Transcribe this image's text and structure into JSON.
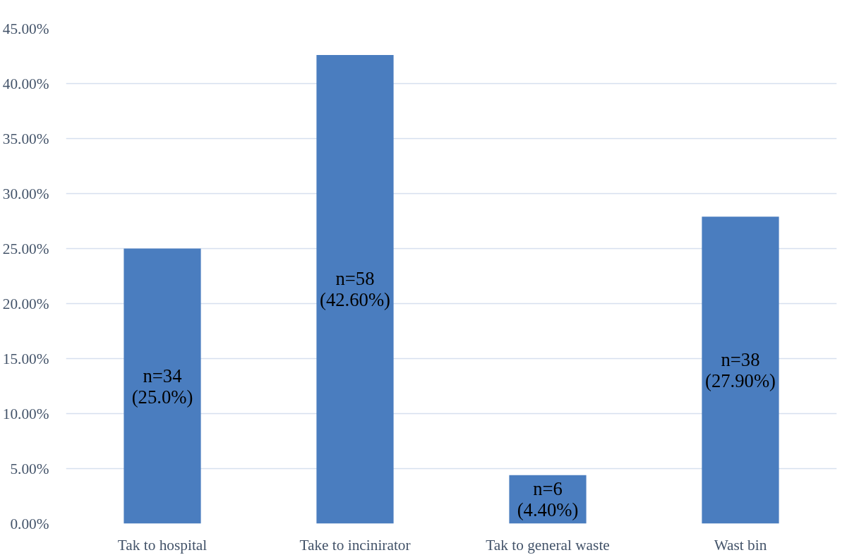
{
  "chart_data": {
    "type": "bar",
    "categories": [
      "Tak to hospital",
      "Take to incinirator",
      "Tak to general waste",
      "Wast bin"
    ],
    "values": [
      25.0,
      42.6,
      4.4,
      27.9
    ],
    "value_labels": [
      "n=34\n(25.0%)",
      "n=58\n(42.60%)",
      "n=6\n(4.40%)",
      "n=38\n(27.90%)"
    ],
    "color": "#4a7dbf",
    "ylim": [
      0,
      45
    ],
    "yticks": [
      {
        "value": 0,
        "label": "0.00%"
      },
      {
        "value": 5,
        "label": "5.00%"
      },
      {
        "value": 10,
        "label": "10.00%"
      },
      {
        "value": 15,
        "label": "15.00%"
      },
      {
        "value": 20,
        "label": "20.00%"
      },
      {
        "value": 25,
        "label": "25.00%"
      },
      {
        "value": 30,
        "label": "30.00%"
      },
      {
        "value": 35,
        "label": "35.00%"
      },
      {
        "value": 40,
        "label": "40.00%"
      },
      {
        "value": 45,
        "label": "45.00%"
      }
    ],
    "grid": "y"
  }
}
